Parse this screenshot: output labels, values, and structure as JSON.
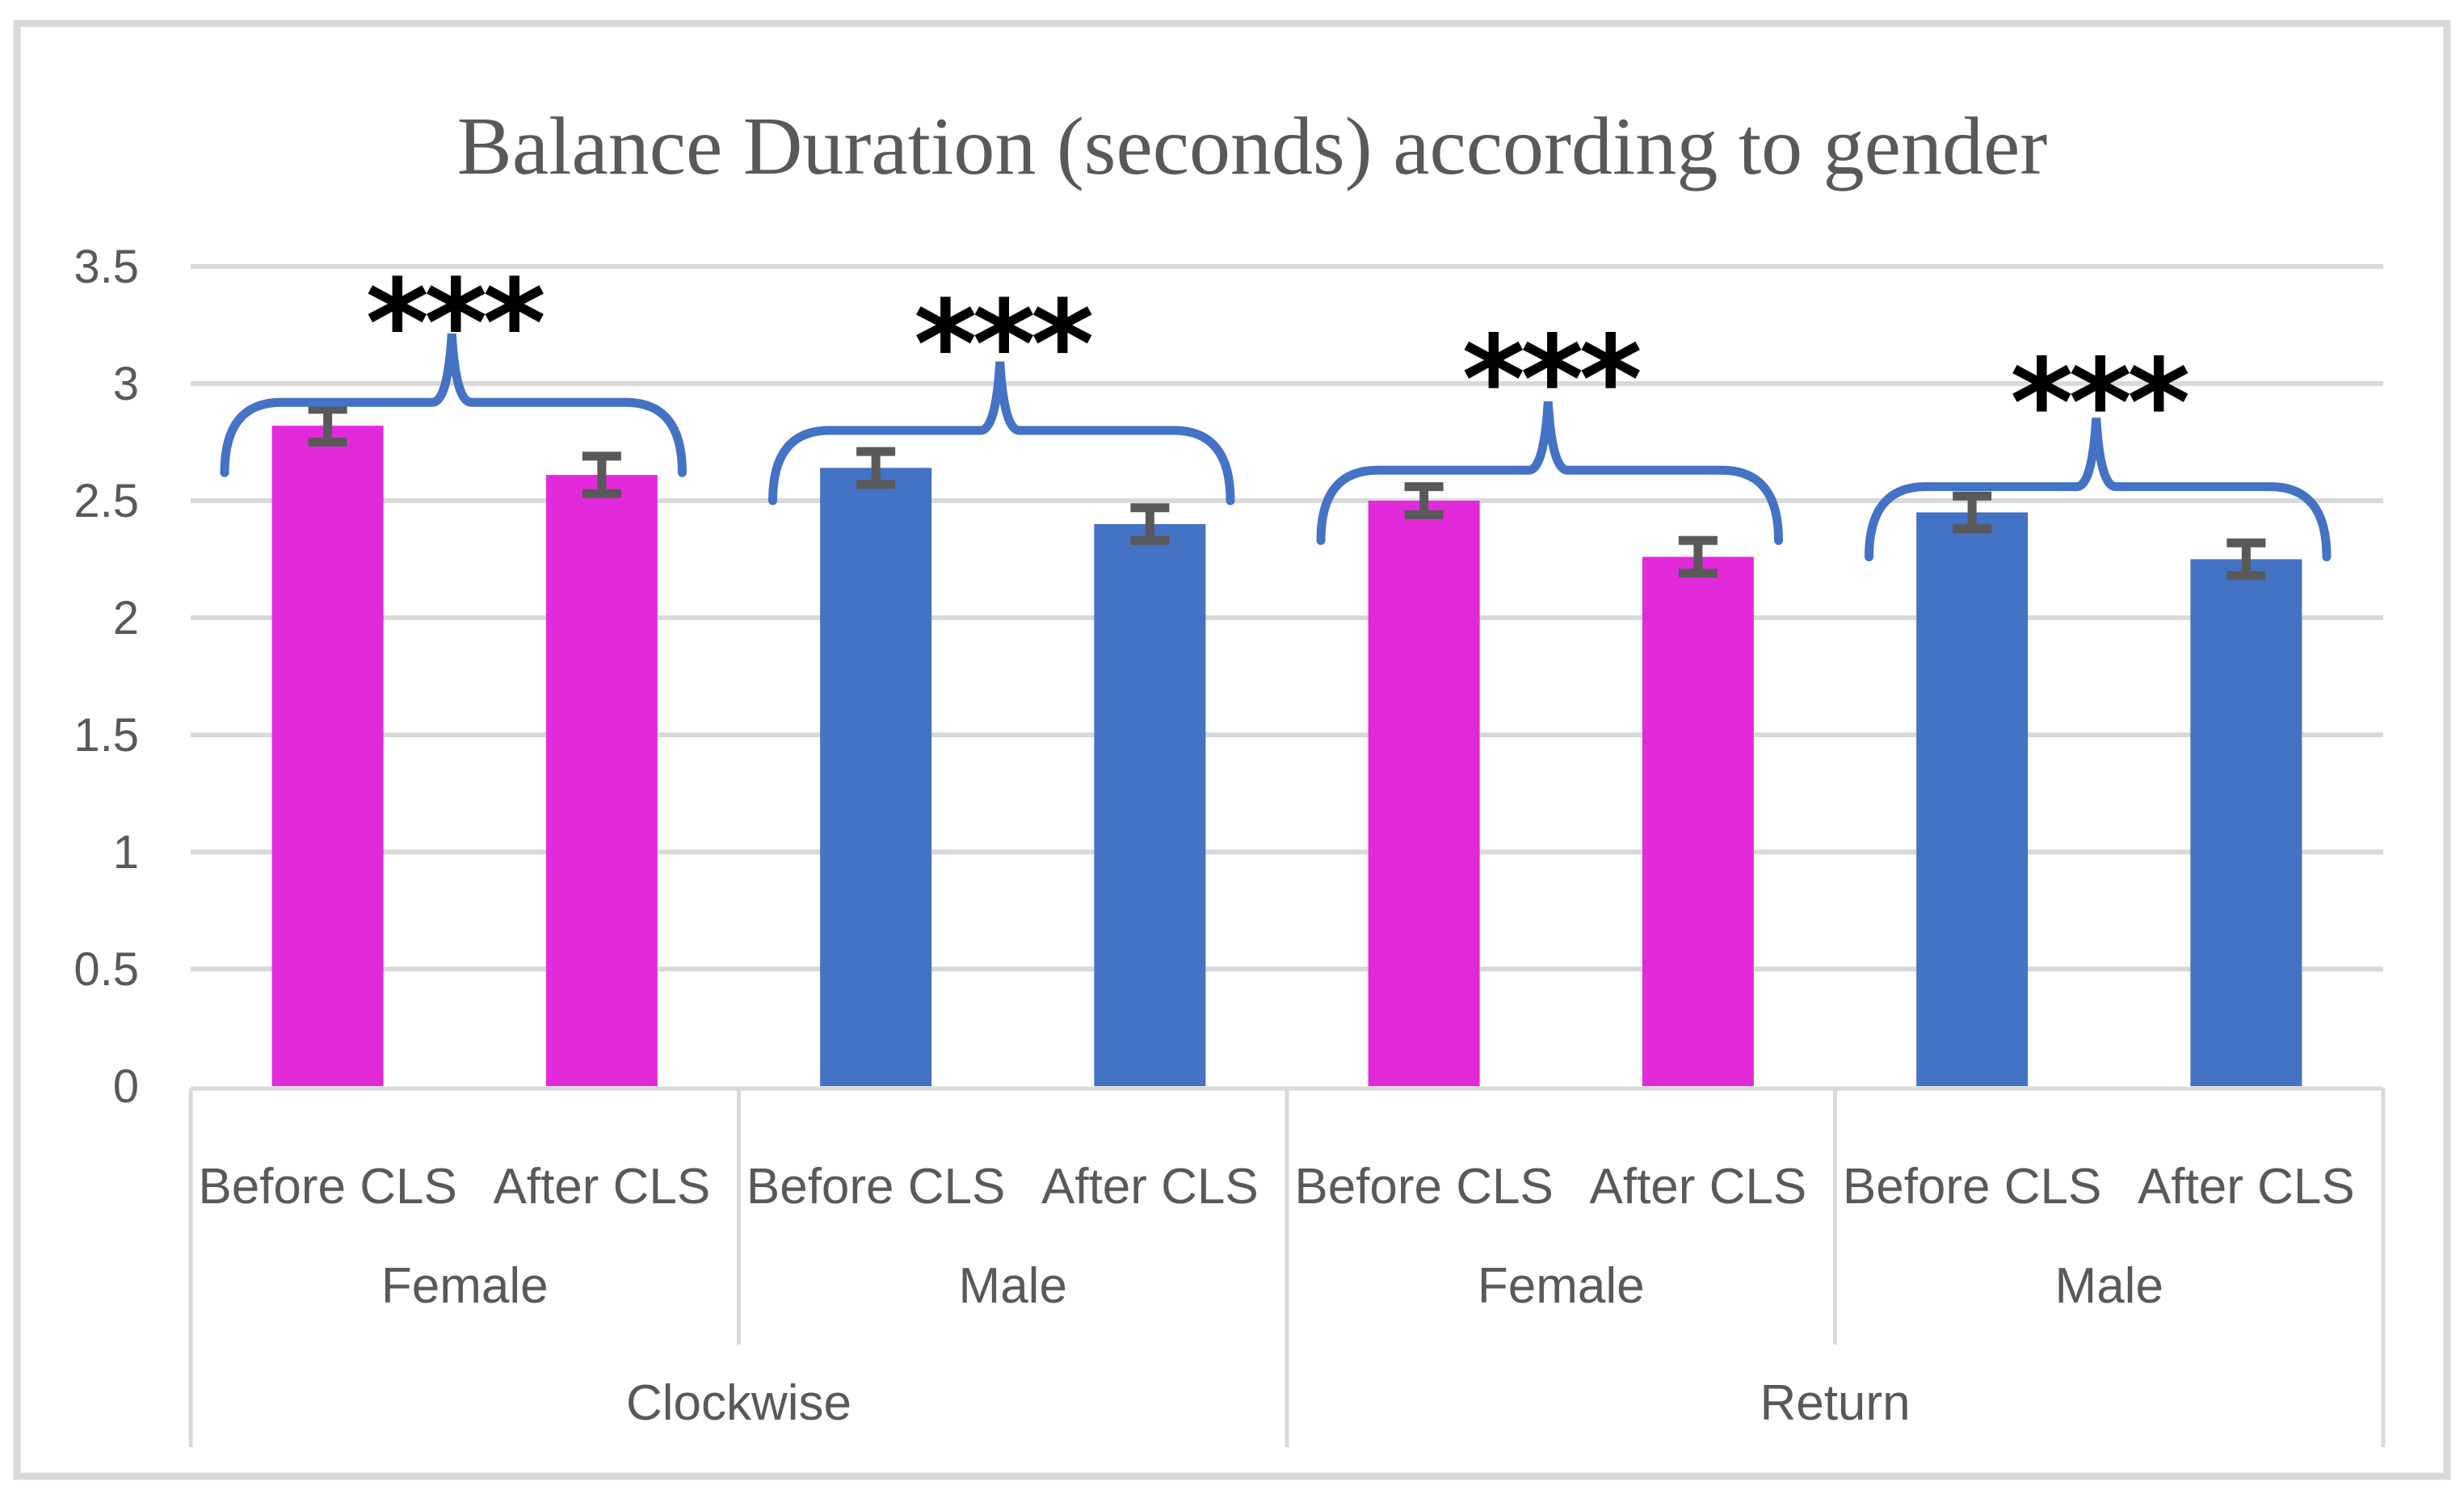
{
  "figure": {
    "background": "#FFFFFF",
    "border_color": "#D9D9D9"
  },
  "chart_data": {
    "type": "bar",
    "title": "Balance Duration (seconds) according to gender",
    "xlabel": "",
    "ylabel": "",
    "ylim": [
      0,
      3.5
    ],
    "yticks": [
      0,
      0.5,
      1,
      1.5,
      2,
      2.5,
      3,
      3.5
    ],
    "grid": "horizontal",
    "legend": "none",
    "axis_levels": [
      "condition",
      "gender",
      "rotation"
    ],
    "rotations": [
      {
        "label": "Clockwise",
        "genders": [
          {
            "label": "Female",
            "series_color": "#E32ADB",
            "significance": "***",
            "sig_y": 3.37,
            "brace_y": 2.92,
            "bars": [
              {
                "label": "Before CLS",
                "value": 2.82,
                "error": 0.07
              },
              {
                "label": "After CLS",
                "value": 2.61,
                "error": 0.08
              }
            ]
          },
          {
            "label": "Male",
            "series_color": "#4472C4",
            "significance": "***",
            "sig_y": 3.28,
            "brace_y": 2.8,
            "bars": [
              {
                "label": "Before CLS",
                "value": 2.64,
                "error": 0.07
              },
              {
                "label": "After CLS",
                "value": 2.4,
                "error": 0.07
              }
            ]
          }
        ]
      },
      {
        "label": "Return",
        "genders": [
          {
            "label": "Female",
            "series_color": "#E32ADB",
            "significance": "***",
            "sig_y": 3.13,
            "brace_y": 2.63,
            "bars": [
              {
                "label": "Before CLS",
                "value": 2.5,
                "error": 0.06
              },
              {
                "label": "After CLS",
                "value": 2.26,
                "error": 0.07
              }
            ]
          },
          {
            "label": "Male",
            "series_color": "#4472C4",
            "significance": "***",
            "sig_y": 3.03,
            "brace_y": 2.56,
            "bars": [
              {
                "label": "Before CLS",
                "value": 2.45,
                "error": 0.07
              },
              {
                "label": "After CLS",
                "value": 2.25,
                "error": 0.07
              }
            ]
          }
        ]
      }
    ],
    "colors": {
      "female_bar": "#E32ADB",
      "male_bar": "#4472C4",
      "brace": "#4472C4",
      "error_bar": "#595959",
      "gridline": "#D9D9D9",
      "axis_line": "#D9D9D9",
      "text": "#595959",
      "significance": "#000000",
      "title": "#595959"
    }
  }
}
